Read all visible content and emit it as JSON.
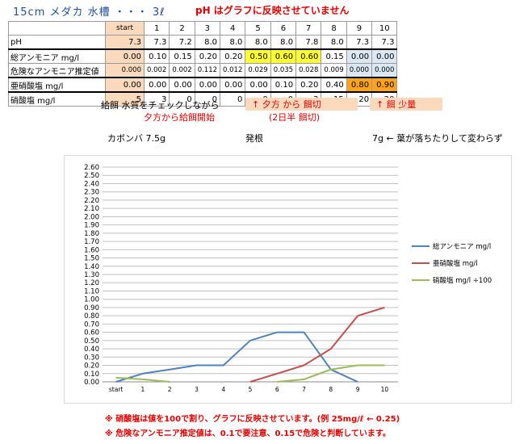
{
  "title": "15cm メダカ 水槽 ・・・ 3ℓ",
  "ph_note": "pH はグラフに反映させていません",
  "table": {
    "headers": [
      "start",
      "1",
      "2",
      "3",
      "4",
      "5",
      "6",
      "7",
      "8",
      "9",
      "10"
    ],
    "rows": [
      {
        "label": "pH",
        "values": [
          "7.3",
          "7.3",
          "7.2",
          "8.0",
          "8.0",
          "8.0",
          "8.0",
          "7.8",
          "8.0",
          "7.3",
          "7.3"
        ]
      },
      {
        "label": "総アンモニア mg/l",
        "values": [
          "0.00",
          "0.10",
          "0.15",
          "0.20",
          "0.20",
          "0.50",
          "0.60",
          "0.60",
          "0.15",
          "0.00",
          "0.00"
        ]
      },
      {
        "label": "危険なアンモニア推定値",
        "values": [
          "0.000",
          "0.002",
          "0.002",
          "0.112",
          "0.012",
          "0.029",
          "0.035",
          "0.028",
          "0.009",
          "0.000",
          "0.000"
        ]
      },
      {
        "label": "亜硝酸塩 mg/l",
        "values": [
          "0.00",
          "0.00",
          "0.00",
          "0.00",
          "0.00",
          "0.00",
          "0.10",
          "0.20",
          "0.40",
          "0.80",
          "0.90"
        ]
      },
      {
        "label": "硝酸塩 mg/l",
        "values": [
          "5",
          "3",
          "0",
          "0",
          "0",
          "0",
          "0",
          "3",
          "15",
          "20",
          "20"
        ]
      }
    ]
  },
  "notes": {
    "feed_check": "給餌 水質をチェックしながら",
    "feed_start": "夕方から給餌開始",
    "cut_feed": "↑ 夕方 から 餌切",
    "half_day": "(2日半 餌切)",
    "less_feed": "↑ 餌 少量",
    "kabomba": "カボンバ 7.5g",
    "rooting": "発根",
    "leaves": "7g ← 葉が落ちたりして変わらず"
  },
  "footnotes": {
    "nitrate": "※ 硝酸塩は値を100で割り、グラフに反映させています。(例 25mg/ℓ ← 0.25)",
    "ammonia": "※ 危険なアンモニア推定値は、0.1で要注意、0.15で危険と判断しています。"
  },
  "chart_data": {
    "type": "line",
    "categories": [
      "start",
      "1",
      "2",
      "3",
      "4",
      "5",
      "6",
      "7",
      "8",
      "9",
      "10"
    ],
    "ylim": [
      0,
      2.6
    ],
    "yticks": [
      "0.00",
      "0.10",
      "0.20",
      "0.30",
      "0.40",
      "0.50",
      "0.60",
      "0.70",
      "0.80",
      "0.90",
      "1.00",
      "1.10",
      "1.20",
      "1.30",
      "1.40",
      "1.50",
      "1.60",
      "1.70",
      "1.80",
      "1.90",
      "2.00",
      "2.10",
      "2.20",
      "2.30",
      "2.40",
      "2.50",
      "2.60"
    ],
    "grid": true,
    "legend_position": "right",
    "series": [
      {
        "name": "総アンモニア mg/l",
        "color": "#4f81bd",
        "values": [
          0.0,
          0.1,
          0.15,
          0.2,
          0.2,
          0.5,
          0.6,
          0.6,
          0.15,
          0.0,
          null
        ]
      },
      {
        "name": "亜硝酸塩 mg/l",
        "color": "#c0504d",
        "values": [
          null,
          null,
          null,
          null,
          null,
          0.0,
          0.1,
          0.2,
          0.4,
          0.8,
          0.9
        ]
      },
      {
        "name": "硝酸塩 mg/l ÷100",
        "color": "#9bbb59",
        "values": [
          0.05,
          0.03,
          0.0,
          null,
          null,
          null,
          0.0,
          0.03,
          0.15,
          0.2,
          0.2
        ]
      }
    ]
  }
}
